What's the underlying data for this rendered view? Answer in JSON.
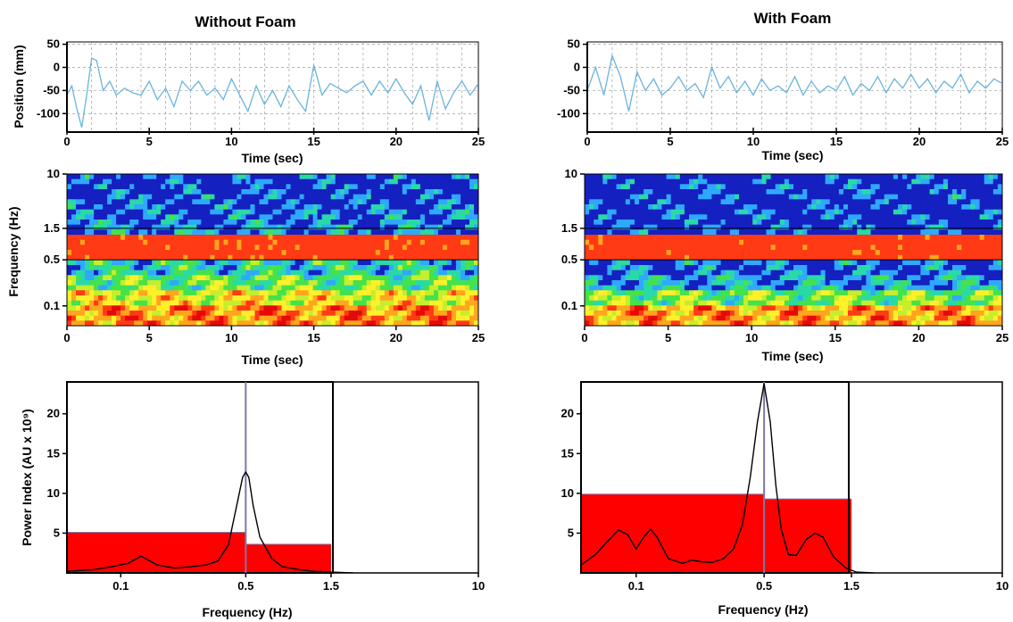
{
  "colors": {
    "trace": "#6ab4de",
    "band": "#ff0000",
    "grid": "#8c8c8c",
    "psd_marker": "#7a7aa8"
  },
  "chart_data": [
    {
      "id": "pos_no_foam",
      "type": "line",
      "title": "Without Foam",
      "xlabel": "Time (sec)",
      "ylabel": "Position (mm)",
      "xlim": [
        0,
        25
      ],
      "ylim": [
        -140,
        55
      ],
      "xticks": [
        0,
        5,
        10,
        15,
        20,
        25
      ],
      "yticks": [
        50,
        0,
        -50,
        -100
      ],
      "grid": true,
      "series": [
        {
          "x": [
            0,
            0.3,
            0.6,
            0.9,
            1.2,
            1.5,
            1.8,
            2.2,
            2.6,
            3,
            3.5,
            4,
            4.5,
            5,
            5.5,
            6,
            6.5,
            7,
            7.5,
            8,
            8.5,
            9,
            9.5,
            10,
            10.5,
            11,
            11.5,
            12,
            12.5,
            13,
            13.5,
            14,
            14.5,
            15,
            15.5,
            16,
            16.5,
            17,
            17.5,
            18,
            18.5,
            19,
            19.5,
            20,
            20.5,
            21,
            21.5,
            22,
            22.5,
            23,
            23.5,
            24,
            24.5,
            25
          ],
          "y": [
            -60,
            -40,
            -90,
            -130,
            -60,
            20,
            15,
            -50,
            -30,
            -60,
            -45,
            -55,
            -60,
            -30,
            -70,
            -45,
            -85,
            -30,
            -50,
            -30,
            -60,
            -45,
            -70,
            -25,
            -60,
            -95,
            -40,
            -80,
            -50,
            -85,
            -40,
            -70,
            -95,
            5,
            -60,
            -35,
            -45,
            -55,
            -40,
            -30,
            -60,
            -30,
            -55,
            -25,
            -55,
            -80,
            -40,
            -115,
            -30,
            -90,
            -55,
            -30,
            -60,
            -35
          ]
        }
      ]
    },
    {
      "id": "pos_foam",
      "type": "line",
      "title": "With Foam",
      "xlabel": "Time (sec)",
      "ylabel": "",
      "xlim": [
        0,
        25
      ],
      "ylim": [
        -140,
        55
      ],
      "xticks": [
        0,
        5,
        10,
        15,
        20,
        25
      ],
      "yticks": [
        50,
        0,
        -50,
        -100
      ],
      "grid": true,
      "series": [
        {
          "x": [
            0,
            0.5,
            1,
            1.5,
            2,
            2.5,
            3,
            3.5,
            4,
            4.5,
            5,
            5.5,
            6,
            6.5,
            7,
            7.5,
            8,
            8.5,
            9,
            9.5,
            10,
            10.5,
            11,
            11.5,
            12,
            12.5,
            13,
            13.5,
            14,
            14.5,
            15,
            15.5,
            16,
            16.5,
            17,
            17.5,
            18,
            18.5,
            19,
            19.5,
            20,
            20.5,
            21,
            21.5,
            22,
            22.5,
            23,
            23.5,
            24,
            24.5,
            25
          ],
          "y": [
            -50,
            0,
            -60,
            25,
            -20,
            -95,
            -10,
            -50,
            -25,
            -60,
            -45,
            -20,
            -50,
            -35,
            -65,
            0,
            -45,
            -20,
            -55,
            -30,
            -60,
            -25,
            -50,
            -40,
            -55,
            -20,
            -60,
            -30,
            -55,
            -40,
            -50,
            -20,
            -60,
            -35,
            -50,
            -20,
            -55,
            -25,
            -45,
            -15,
            -45,
            -25,
            -55,
            -30,
            -45,
            -15,
            -55,
            -30,
            -45,
            -25,
            -35
          ]
        }
      ]
    },
    {
      "id": "wav_no_foam",
      "type": "heatmap",
      "xlabel": "Time (sec)",
      "ylabel": "Frequency (Hz)",
      "xlim": [
        0,
        25
      ],
      "ylim": [
        0.05,
        10
      ],
      "yscale": "log",
      "xticks": [
        0,
        5,
        10,
        15,
        20,
        25
      ],
      "yticks": [
        10,
        1.5,
        0.5,
        0.1
      ],
      "yticklabels": [
        "10",
        "1.5",
        "0.5",
        "0.1"
      ],
      "hlines": [
        1.5,
        0.5
      ],
      "colormap": [
        "#1420c0",
        "#2fa8ff",
        "#29d9a8",
        "#45e24a",
        "#c5ee2c",
        "#fff02a",
        "#ffa51e",
        "#ff3a14",
        "#e30a08"
      ],
      "power_levels": [
        0.96,
        0.93,
        0.9,
        0.86,
        0.82,
        0.74,
        0.6,
        0.42,
        0.25
      ]
    },
    {
      "id": "wav_foam",
      "type": "heatmap",
      "xlabel": "Time (sec)",
      "ylabel": "",
      "xlim": [
        0,
        25
      ],
      "ylim": [
        0.05,
        10
      ],
      "yscale": "log",
      "xticks": [
        0,
        5,
        10,
        15,
        20,
        25
      ],
      "yticks": [
        10,
        1.5,
        0.5,
        0.1
      ],
      "yticklabels": [
        "10",
        "1.5",
        "0.5",
        "0.1"
      ],
      "hlines": [
        1.5,
        0.5
      ],
      "colormap": [
        "#1420c0",
        "#2fa8ff",
        "#29d9a8",
        "#45e24a",
        "#c5ee2c",
        "#fff02a",
        "#ffa51e",
        "#ff3a14",
        "#e30a08"
      ],
      "power_levels": [
        0.98,
        0.97,
        0.96,
        0.95,
        0.94,
        0.9,
        0.82,
        0.58,
        0.28
      ]
    },
    {
      "id": "psd_no_foam",
      "type": "area",
      "xlabel": "Frequency (Hz)",
      "ylabel": "Power Index (AU x 10⁹)",
      "xlim": [
        0.05,
        10
      ],
      "xscale": "log",
      "ylim": [
        0,
        24
      ],
      "xticks": [
        0.1,
        0.5,
        1.5,
        10
      ],
      "xticklabels": [
        "0.1",
        "0.5",
        "1.5",
        "10"
      ],
      "yticks": [
        5,
        10,
        15,
        20
      ],
      "bands": [
        {
          "from": 0.05,
          "to": 0.5,
          "value": 5.1
        },
        {
          "from": 0.5,
          "to": 1.5,
          "value": 3.6
        }
      ],
      "marker_x": 0.5,
      "series": [
        {
          "x": [
            0.05,
            0.07,
            0.09,
            0.11,
            0.13,
            0.16,
            0.2,
            0.25,
            0.3,
            0.35,
            0.4,
            0.45,
            0.48,
            0.5,
            0.52,
            0.55,
            0.6,
            0.7,
            0.8,
            1,
            1.2,
            1.5,
            2
          ],
          "y": [
            0.2,
            0.4,
            0.8,
            1.2,
            2.1,
            1.0,
            0.6,
            0.8,
            1.0,
            1.5,
            3.5,
            9,
            12,
            12.7,
            12,
            8.5,
            4.5,
            1.8,
            0.8,
            0.4,
            0.2,
            0.1,
            0
          ]
        }
      ]
    },
    {
      "id": "psd_foam",
      "type": "area",
      "xlabel": "Frequency (Hz)",
      "ylabel": "",
      "xlim": [
        0.05,
        10
      ],
      "xscale": "log",
      "ylim": [
        0,
        24
      ],
      "xticks": [
        0.1,
        0.5,
        1.5,
        10
      ],
      "xticklabels": [
        "0.1",
        "0.5",
        "1.5",
        "10"
      ],
      "yticks": [
        5,
        10,
        15,
        20
      ],
      "bands": [
        {
          "from": 0.05,
          "to": 0.5,
          "value": 9.9
        },
        {
          "from": 0.5,
          "to": 1.5,
          "value": 9.3
        }
      ],
      "marker_x": 0.5,
      "series": [
        {
          "x": [
            0.05,
            0.06,
            0.07,
            0.08,
            0.09,
            0.1,
            0.11,
            0.12,
            0.13,
            0.15,
            0.18,
            0.2,
            0.23,
            0.26,
            0.3,
            0.34,
            0.38,
            0.42,
            0.46,
            0.5,
            0.54,
            0.58,
            0.62,
            0.68,
            0.75,
            0.85,
            0.95,
            1.05,
            1.2,
            1.4,
            1.6,
            2
          ],
          "y": [
            1,
            2.3,
            4,
            5.4,
            4.8,
            3,
            4.5,
            5.5,
            4.5,
            1.8,
            1.2,
            1.6,
            1.4,
            1.3,
            1.8,
            3,
            6,
            12,
            19,
            23.8,
            19,
            11,
            5.5,
            2.3,
            2.2,
            4.2,
            5,
            4.5,
            2,
            0.6,
            0.1,
            0
          ]
        }
      ]
    }
  ]
}
